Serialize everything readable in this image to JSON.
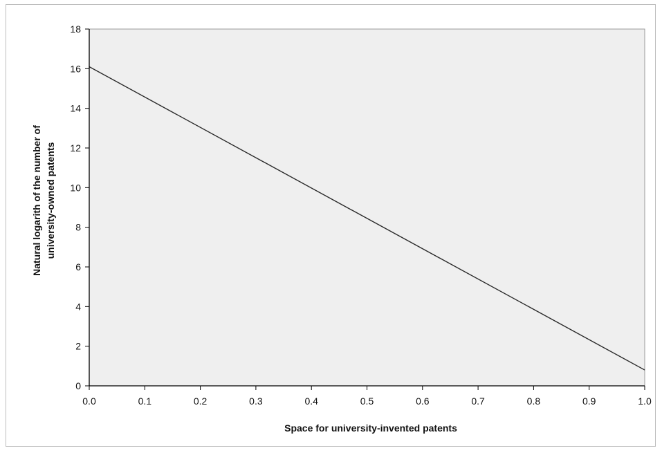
{
  "chart_data": {
    "type": "line",
    "title": "",
    "xlabel": "Space for university-invented patents",
    "ylabel_lines": [
      "Natural logarith of the number of",
      "university-owned patents"
    ],
    "xlim": [
      0,
      1
    ],
    "ylim": [
      0,
      18
    ],
    "x_ticks": [
      "0.0",
      "0.1",
      "0.2",
      "0.3",
      "0.4",
      "0.5",
      "0.6",
      "0.7",
      "0.8",
      "0.9",
      "1.0"
    ],
    "y_ticks": [
      "0",
      "2",
      "4",
      "6",
      "8",
      "10",
      "12",
      "14",
      "16",
      "18"
    ],
    "grid": false,
    "legend": "none",
    "series": [
      {
        "x": [
          0.0,
          1.0
        ],
        "y": [
          16.1,
          0.8
        ]
      }
    ],
    "colors": {
      "plot_background": "#efefef",
      "line": "#2a2a2a",
      "axis": "#000000"
    }
  }
}
